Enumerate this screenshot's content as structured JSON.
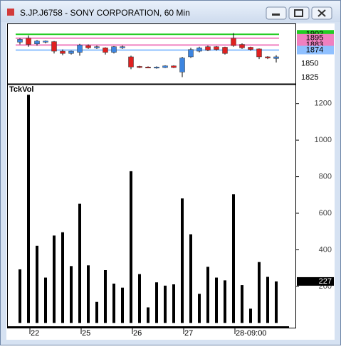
{
  "window": {
    "title": "S.JP.J6758 - SONY CORPORATION, 60 Min"
  },
  "chart_data": [
    {
      "type": "candlestick",
      "open": [
        1888,
        1895,
        1885,
        1888,
        1889,
        1872,
        1868,
        1870,
        1882,
        1878,
        1878,
        1870,
        1878,
        1862,
        1845,
        1844,
        1842,
        1843,
        1846,
        1835,
        1862,
        1872,
        1880,
        1880,
        1879,
        1895,
        1884,
        1879,
        1876,
        1862,
        1859
      ],
      "high": [
        1895,
        1900,
        1892,
        1891,
        1890,
        1875,
        1873,
        1885,
        1884,
        1882,
        1879,
        1881,
        1882,
        1864,
        1846,
        1845,
        1845,
        1847,
        1847,
        1862,
        1878,
        1880,
        1882,
        1881,
        1880,
        1904,
        1886,
        1880,
        1877,
        1863,
        1865
      ],
      "low": [
        1884,
        1880,
        1882,
        1886,
        1868,
        1865,
        1866,
        1864,
        1876,
        1876,
        1866,
        1868,
        1876,
        1840,
        1842,
        1842,
        1841,
        1842,
        1842,
        1826,
        1860,
        1870,
        1872,
        1873,
        1866,
        1880,
        1876,
        1873,
        1858,
        1858,
        1852
      ],
      "close": [
        1893,
        1884,
        1890,
        1890,
        1872,
        1868,
        1872,
        1883,
        1878,
        1880,
        1870,
        1880,
        1880,
        1844,
        1843,
        1843,
        1844,
        1846,
        1843,
        1860,
        1875,
        1878,
        1874,
        1875,
        1868,
        1882,
        1878,
        1875,
        1862,
        1860,
        1862
      ],
      "up_color": "#3d85e0",
      "down_color": "#e02020",
      "levels": [
        {
          "value": 1902,
          "color": "#22cc22"
        },
        {
          "value": 1895,
          "color": "#f080c0"
        },
        {
          "value": 1883,
          "color": "#f080c0"
        },
        {
          "value": 1874,
          "color": "#8fc0ff"
        }
      ],
      "ylim": [
        1814,
        1920
      ],
      "yticks": [
        1850,
        1825
      ]
    },
    {
      "type": "bar",
      "label": "TckVol",
      "color": "#000000",
      "categories": [
        null,
        "22",
        null,
        null,
        null,
        null,
        null,
        "25",
        null,
        null,
        null,
        null,
        null,
        "26",
        null,
        null,
        null,
        null,
        null,
        "27",
        null,
        null,
        null,
        null,
        null,
        "28-09:00",
        null,
        null,
        null,
        null,
        null
      ],
      "values": [
        293,
        1248,
        422,
        248,
        478,
        496,
        311,
        652,
        315,
        115,
        289,
        215,
        193,
        830,
        267,
        85,
        222,
        204,
        211,
        681,
        485,
        159,
        307,
        248,
        233,
        704,
        207,
        78,
        333,
        252,
        227
      ],
      "ylim": [
        -26,
        1300
      ],
      "yticks": [
        1200,
        1000,
        800,
        600,
        400,
        200
      ]
    }
  ]
}
